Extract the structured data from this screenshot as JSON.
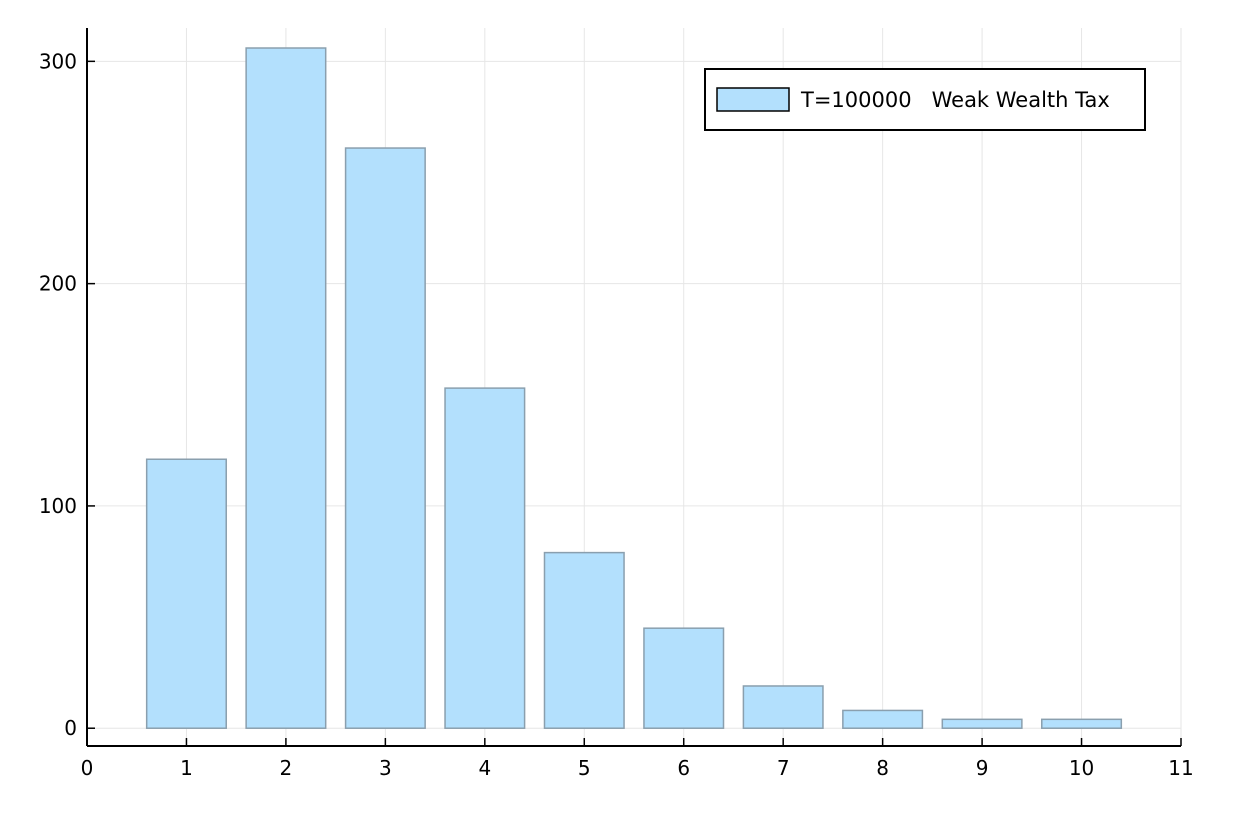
{
  "chart_data": {
    "type": "bar",
    "categories": [
      1,
      2,
      3,
      4,
      5,
      6,
      7,
      8,
      9,
      10
    ],
    "series": [
      {
        "name": "T=100000   Weak Wealth Tax",
        "values": [
          121,
          306,
          261,
          153,
          79,
          45,
          19,
          8,
          4,
          4
        ]
      }
    ],
    "title": "",
    "xlabel": "",
    "ylabel": "",
    "xlim": [
      0,
      11
    ],
    "ylim": [
      -8,
      315
    ],
    "xticks": [
      0,
      1,
      2,
      3,
      4,
      5,
      6,
      7,
      8,
      9,
      10,
      11
    ],
    "yticks": [
      0,
      100,
      200,
      300
    ],
    "bar_width": 0.8,
    "grid": true,
    "legend_position": "top-right",
    "colors": {
      "bar_fill": "#b3e0fd",
      "bar_stroke": "#8a9fae",
      "grid": "#e6e6e6",
      "axis": "#000000"
    }
  }
}
